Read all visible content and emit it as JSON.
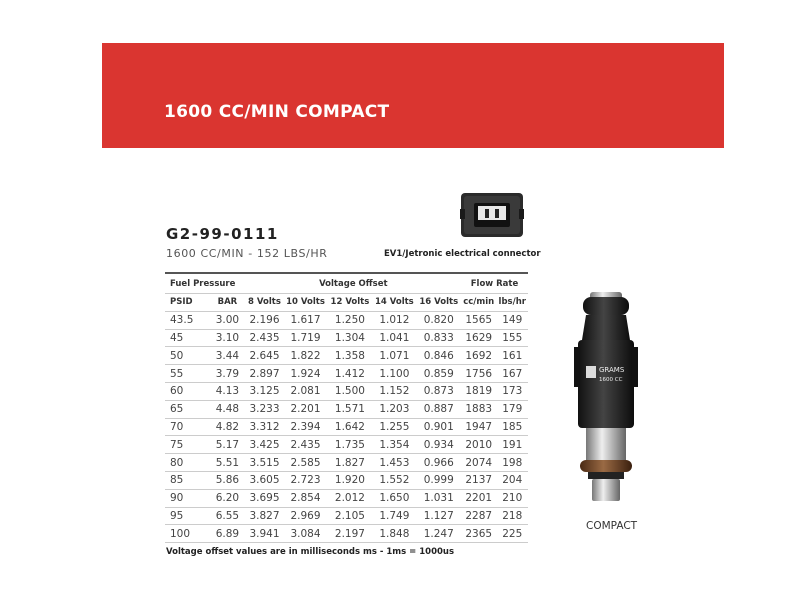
{
  "banner": {
    "title": "1600 CC/MIN COMPACT",
    "color": "#da3530"
  },
  "product": {
    "part_number": "G2-99-0111",
    "subtitle": "1600 CC/MIN - 152 LBS/HR",
    "connector_label": "EV1/Jetronic electrical connector",
    "image_caption": "COMPACT",
    "injector_branding": {
      "brand": "GRAMS",
      "rating": "1600 CC"
    }
  },
  "table": {
    "groups": [
      "Fuel Pressure",
      "Voltage Offset",
      "Flow Rate"
    ],
    "columns": [
      "PSID",
      "BAR",
      "8 Volts",
      "10 Volts",
      "12 Volts",
      "14 Volts",
      "16 Volts",
      "cc/min",
      "lbs/hr"
    ],
    "rows": [
      [
        "43.5",
        "3.00",
        "2.196",
        "1.617",
        "1.250",
        "1.012",
        "0.820",
        "1565",
        "149"
      ],
      [
        "45",
        "3.10",
        "2.435",
        "1.719",
        "1.304",
        "1.041",
        "0.833",
        "1629",
        "155"
      ],
      [
        "50",
        "3.44",
        "2.645",
        "1.822",
        "1.358",
        "1.071",
        "0.846",
        "1692",
        "161"
      ],
      [
        "55",
        "3.79",
        "2.897",
        "1.924",
        "1.412",
        "1.100",
        "0.859",
        "1756",
        "167"
      ],
      [
        "60",
        "4.13",
        "3.125",
        "2.081",
        "1.500",
        "1.152",
        "0.873",
        "1819",
        "173"
      ],
      [
        "65",
        "4.48",
        "3.233",
        "2.201",
        "1.571",
        "1.203",
        "0.887",
        "1883",
        "179"
      ],
      [
        "70",
        "4.82",
        "3.312",
        "2.394",
        "1.642",
        "1.255",
        "0.901",
        "1947",
        "185"
      ],
      [
        "75",
        "5.17",
        "3.425",
        "2.435",
        "1.735",
        "1.354",
        "0.934",
        "2010",
        "191"
      ],
      [
        "80",
        "5.51",
        "3.515",
        "2.585",
        "1.827",
        "1.453",
        "0.966",
        "2074",
        "198"
      ],
      [
        "85",
        "5.86",
        "3.605",
        "2.723",
        "1.920",
        "1.552",
        "0.999",
        "2137",
        "204"
      ],
      [
        "90",
        "6.20",
        "3.695",
        "2.854",
        "2.012",
        "1.650",
        "1.031",
        "2201",
        "210"
      ],
      [
        "95",
        "6.55",
        "3.827",
        "2.969",
        "2.105",
        "1.749",
        "1.127",
        "2287",
        "218"
      ],
      [
        "100",
        "6.89",
        "3.941",
        "3.084",
        "2.197",
        "1.848",
        "1.247",
        "2365",
        "225"
      ]
    ]
  },
  "note": "Voltage offset values are in milliseconds ms - 1ms = 1000us"
}
